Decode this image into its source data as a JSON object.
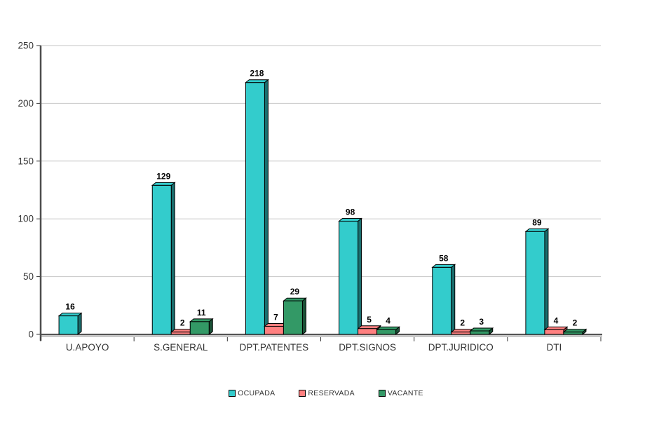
{
  "chart_data": {
    "type": "bar",
    "title": "",
    "xlabel": "",
    "ylabel": "",
    "categories": [
      "U.APOYO",
      "S.GENERAL",
      "DPT.PATENTES",
      "DPT.SIGNOS",
      "DPT.JURIDICO",
      "DTI"
    ],
    "series": [
      {
        "name": "OCUPADA",
        "color": "#33CCCC",
        "shade": "#1A6E6E",
        "values": [
          16,
          129,
          218,
          98,
          58,
          89
        ]
      },
      {
        "name": "RESERVADA",
        "color": "#FF8080",
        "shade": "#8F4747",
        "values": [
          0,
          2,
          7,
          5,
          2,
          4
        ]
      },
      {
        "name": "VACANTE",
        "color": "#339966",
        "shade": "#1B5137",
        "values": [
          0,
          11,
          29,
          4,
          3,
          2
        ]
      }
    ],
    "ylim": [
      0,
      250
    ],
    "yticks": [
      0,
      50,
      100,
      150,
      200,
      250
    ],
    "grid": true,
    "legend_position": "bottom",
    "value_labels_shown": true,
    "zero_values_hidden": true,
    "style": {
      "background": "#FFFFFF",
      "gridline_color": "#C6C6C6",
      "axis_line_color": "#4D4D4D",
      "x_axis_line_color": "#1A1A1A",
      "x_axis_shadow_color": "#C8C8C8",
      "tick_color": "#333333",
      "axis_label_color": "#333333",
      "value_label_color": "#000000",
      "bar_outline_color": "#000000"
    }
  }
}
